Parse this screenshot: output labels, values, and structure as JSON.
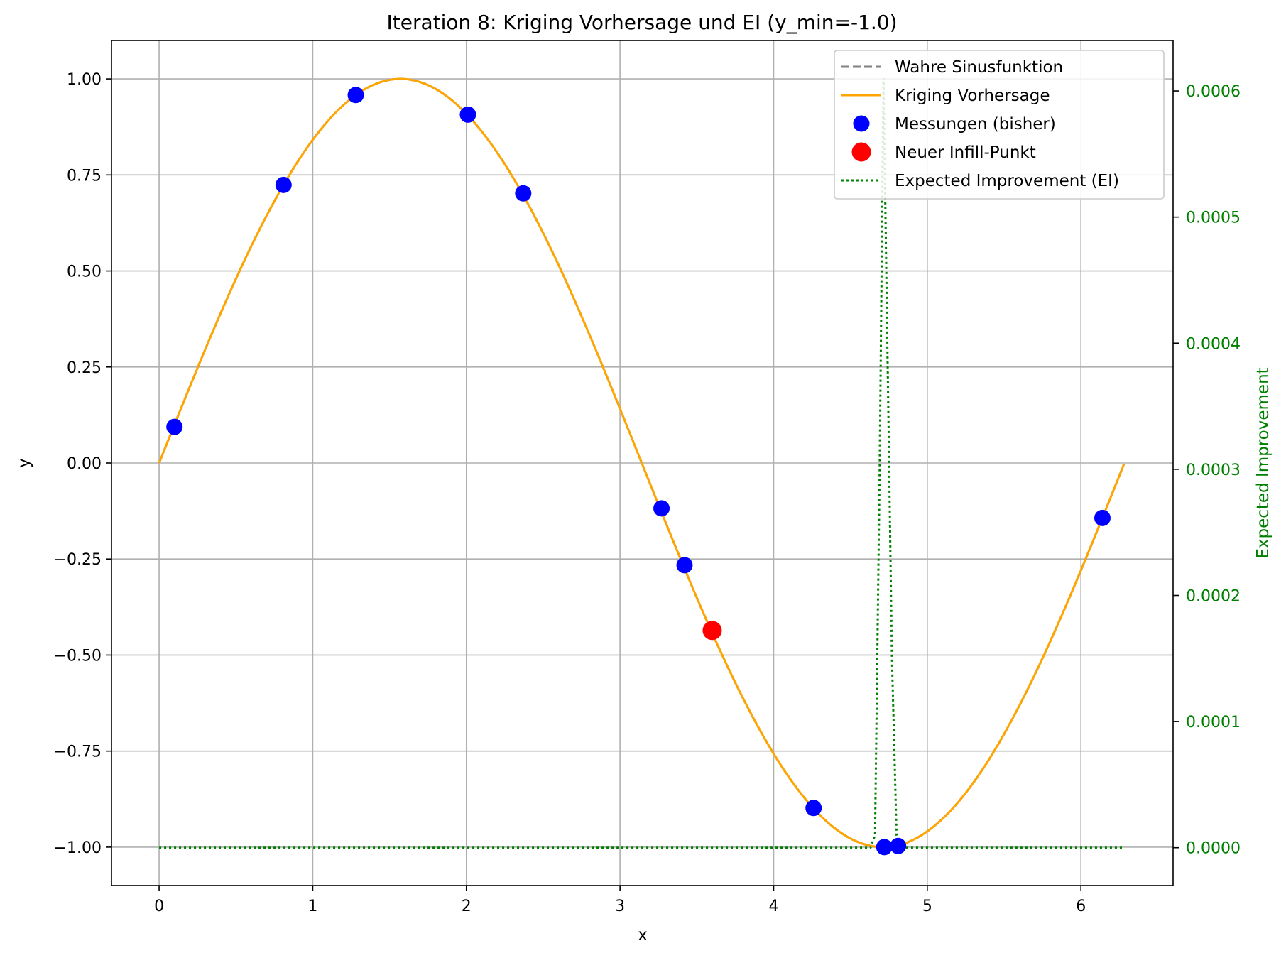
{
  "chart_data": {
    "type": "line",
    "title": "Iteration 8: Kriging Vorhersage und EI (y_min=-1.0)",
    "xlabel": "x",
    "ylabel": "y",
    "y2label": "Expected Improvement",
    "xlim": [
      -0.31,
      6.6
    ],
    "ylim": [
      -1.1,
      1.1
    ],
    "y2lim": [
      -3e-05,
      0.00064
    ],
    "x_ticks": [
      0,
      1,
      2,
      3,
      4,
      5,
      6
    ],
    "x_tick_labels": [
      "0",
      "1",
      "2",
      "3",
      "4",
      "5",
      "6"
    ],
    "y_ticks": [
      1.0,
      0.75,
      0.5,
      0.25,
      0.0,
      -0.25,
      -0.5,
      -0.75,
      -1.0
    ],
    "y_tick_labels": [
      "1.00",
      "0.75",
      "0.50",
      "0.25",
      "0.00",
      "−0.25",
      "−0.50",
      "−0.75",
      "−1.00"
    ],
    "y2_ticks": [
      0.0006,
      0.0005,
      0.0004,
      0.0003,
      0.0002,
      0.0001,
      0.0
    ],
    "y2_tick_labels": [
      "0.0006",
      "0.0005",
      "0.0004",
      "0.0003",
      "0.0002",
      "0.0001",
      "0.0000"
    ],
    "grid": true,
    "legend_position": "top-right",
    "colors": {
      "true_function": "#808080",
      "kriging": "#FFA500",
      "measurements": "#0000FF",
      "infill": "#FF0000",
      "ei": "#008000"
    },
    "series": [
      {
        "name": "Wahre Sinusfunktion",
        "style": "dashed",
        "function": "sin(x)",
        "x_range": [
          0,
          6.28
        ]
      },
      {
        "name": "Kriging Vorhersage",
        "style": "solid",
        "function": "sin(x)",
        "x_range": [
          0,
          6.28
        ]
      },
      {
        "name": "Messungen (bisher)",
        "style": "markers",
        "x": [
          0.1,
          0.81,
          1.28,
          2.01,
          2.37,
          3.27,
          3.42,
          4.26,
          4.72,
          4.81,
          6.14
        ],
        "y": [
          0.094,
          0.724,
          0.958,
          0.907,
          0.702,
          -0.118,
          -0.266,
          -0.898,
          -1.0,
          -0.997,
          -0.143
        ]
      },
      {
        "name": "Neuer Infill-Punkt",
        "style": "markers",
        "x": [
          3.6
        ],
        "y": [
          -0.436
        ]
      },
      {
        "name": "Expected Improvement (EI)",
        "style": "dotted",
        "axis": "right",
        "x": [
          0,
          4.63,
          4.66,
          4.69,
          4.715,
          4.74,
          4.77,
          4.8,
          4.83,
          6.28
        ],
        "y": [
          0,
          0,
          1e-05,
          0.0003,
          0.00061,
          0.0004,
          0.00015,
          1e-05,
          0,
          0
        ]
      }
    ]
  }
}
